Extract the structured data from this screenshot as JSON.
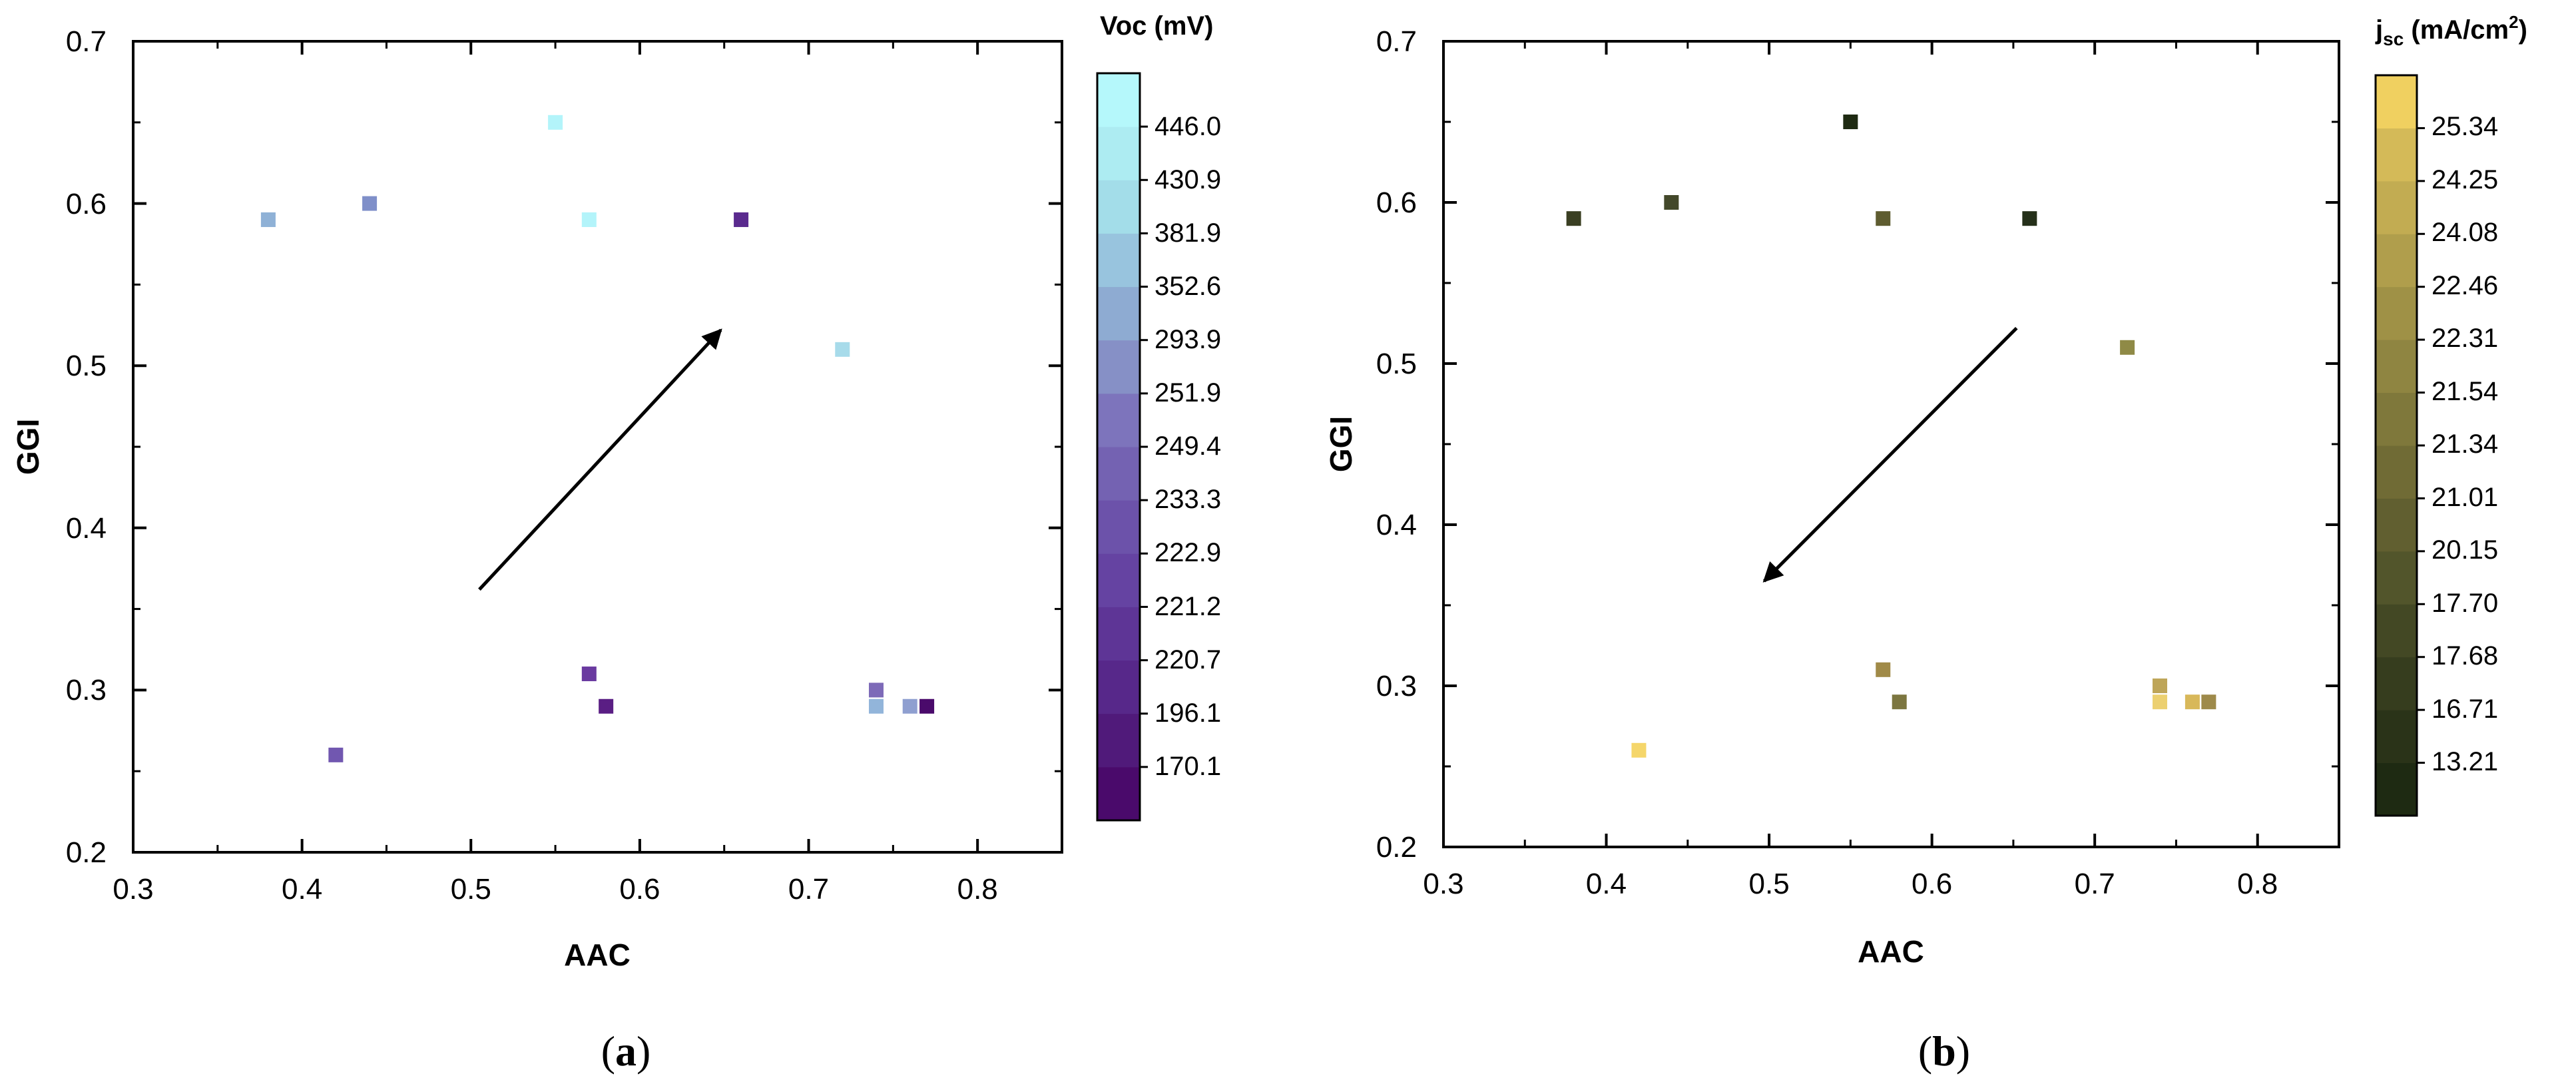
{
  "chart_data": [
    {
      "type": "scatter",
      "panel_label": {
        "open": "(",
        "letter": "a",
        "close": ")"
      },
      "xlabel": "AAC",
      "ylabel": "GGI",
      "xlim": [
        0.3,
        0.85
      ],
      "ylim": [
        0.2,
        0.7
      ],
      "xticks": [
        "0.3",
        "0.4",
        "0.5",
        "0.6",
        "0.7",
        "0.8"
      ],
      "yticks": [
        "0.2",
        "0.3",
        "0.4",
        "0.5",
        "0.6",
        "0.7"
      ],
      "colorbar": {
        "title": "Voc (mV)",
        "levels": [
          "170.1",
          "196.1",
          "220.7",
          "221.2",
          "222.9",
          "233.3",
          "249.4",
          "251.9",
          "293.9",
          "352.6",
          "381.9",
          "430.9",
          "446.0"
        ],
        "band_colors": [
          "#4a0a6b",
          "#501a7a",
          "#57288a",
          "#5e3596",
          "#6543a2",
          "#6c52aa",
          "#7462b2",
          "#7d74bc",
          "#8690c6",
          "#8eabd2",
          "#98c4de",
          "#a3dde9",
          "#adecf2",
          "#b5f8fb"
        ]
      },
      "points": [
        {
          "x": 0.38,
          "y": 0.59,
          "color": "#8fb1d6"
        },
        {
          "x": 0.44,
          "y": 0.6,
          "color": "#7f8fc9"
        },
        {
          "x": 0.55,
          "y": 0.65,
          "color": "#b3f4fa"
        },
        {
          "x": 0.57,
          "y": 0.59,
          "color": "#b3f4fa"
        },
        {
          "x": 0.66,
          "y": 0.59,
          "color": "#5a2a8e"
        },
        {
          "x": 0.72,
          "y": 0.51,
          "color": "#a7dbea"
        },
        {
          "x": 0.57,
          "y": 0.31,
          "color": "#6a3aa0"
        },
        {
          "x": 0.58,
          "y": 0.29,
          "color": "#5a1e84"
        },
        {
          "x": 0.42,
          "y": 0.26,
          "color": "#7157b0"
        },
        {
          "x": 0.74,
          "y": 0.3,
          "color": "#7d6ab8"
        },
        {
          "x": 0.74,
          "y": 0.29,
          "color": "#92b5da"
        },
        {
          "x": 0.76,
          "y": 0.29,
          "color": "#8f9fd0"
        },
        {
          "x": 0.77,
          "y": 0.29,
          "color": "#4a0a6b"
        }
      ],
      "arrow": {
        "from": [
          0.505,
          0.362
        ],
        "to": [
          0.648,
          0.522
        ]
      }
    },
    {
      "type": "scatter",
      "panel_label": {
        "open": "(",
        "letter": "b",
        "close": ")"
      },
      "xlabel": "AAC",
      "ylabel": "GGI",
      "xlim": [
        0.3,
        0.85
      ],
      "ylim": [
        0.2,
        0.7
      ],
      "xticks": [
        "0.3",
        "0.4",
        "0.5",
        "0.6",
        "0.7",
        "0.8"
      ],
      "yticks": [
        "0.2",
        "0.3",
        "0.4",
        "0.5",
        "0.6",
        "0.7"
      ],
      "colorbar": {
        "title_main": "j",
        "title_sub": "sc",
        "title_unit": " (mA/cm",
        "title_sup": "2",
        "title_close": ")",
        "levels": [
          "13.21",
          "16.71",
          "17.68",
          "17.70",
          "20.15",
          "21.01",
          "21.34",
          "21.54",
          "22.31",
          "22.46",
          "24.08",
          "24.25",
          "25.34"
        ],
        "band_colors": [
          "#1e2a12",
          "#2a3318",
          "#363d1e",
          "#434824",
          "#52552b",
          "#615f30",
          "#706b35",
          "#7f783b",
          "#8f8541",
          "#9f9146",
          "#b09e4c",
          "#c2ac52",
          "#d4ba58",
          "#f0d060"
        ]
      },
      "points": [
        {
          "x": 0.38,
          "y": 0.59,
          "color": "#3a3f22"
        },
        {
          "x": 0.44,
          "y": 0.6,
          "color": "#43482a"
        },
        {
          "x": 0.55,
          "y": 0.65,
          "color": "#1e2a12"
        },
        {
          "x": 0.57,
          "y": 0.59,
          "color": "#5e5c30"
        },
        {
          "x": 0.66,
          "y": 0.59,
          "color": "#25301a"
        },
        {
          "x": 0.72,
          "y": 0.51,
          "color": "#8f8a46"
        },
        {
          "x": 0.57,
          "y": 0.31,
          "color": "#a08a48"
        },
        {
          "x": 0.58,
          "y": 0.29,
          "color": "#7c7640"
        },
        {
          "x": 0.42,
          "y": 0.26,
          "color": "#f5d66a"
        },
        {
          "x": 0.74,
          "y": 0.3,
          "color": "#bea558"
        },
        {
          "x": 0.74,
          "y": 0.29,
          "color": "#ecd070"
        },
        {
          "x": 0.76,
          "y": 0.29,
          "color": "#d8b85a"
        },
        {
          "x": 0.77,
          "y": 0.29,
          "color": "#9e8a4a"
        }
      ],
      "arrow": {
        "from": [
          0.652,
          0.522
        ],
        "to": [
          0.497,
          0.365
        ]
      }
    }
  ]
}
